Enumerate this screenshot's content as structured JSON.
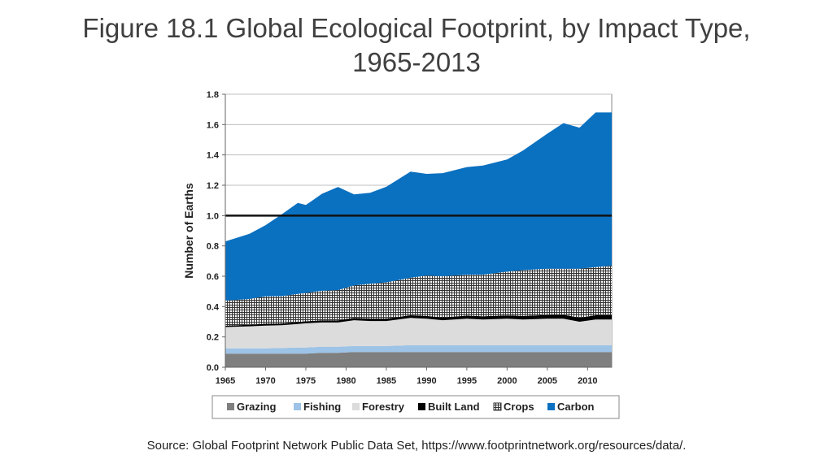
{
  "slide": {
    "title_line1": "Figure 18.1 Global Ecological Footprint, by Impact Type,",
    "title_line2": "1965-2013",
    "source": "Source: Global Footprint Network Public Data Set, https://www.footprintnetwork.org/resources/data/."
  },
  "chart_data": {
    "type": "area",
    "stacked": true,
    "x": [
      1965,
      1968,
      1970,
      1972,
      1974,
      1975,
      1977,
      1979,
      1981,
      1983,
      1985,
      1988,
      1990,
      1992,
      1995,
      1997,
      2000,
      2002,
      2005,
      2007,
      2009,
      2011,
      2013
    ],
    "series": [
      {
        "name": "Grazing",
        "color": "#7f7f7f",
        "pattern": "solid",
        "values": [
          0.09,
          0.09,
          0.09,
          0.09,
          0.09,
          0.09,
          0.095,
          0.095,
          0.1,
          0.1,
          0.1,
          0.1,
          0.1,
          0.1,
          0.1,
          0.1,
          0.1,
          0.1,
          0.1,
          0.1,
          0.1,
          0.1,
          0.1
        ]
      },
      {
        "name": "Fishing",
        "color": "#9dc3e6",
        "pattern": "solid",
        "values": [
          0.035,
          0.035,
          0.035,
          0.037,
          0.04,
          0.04,
          0.04,
          0.04,
          0.04,
          0.04,
          0.04,
          0.045,
          0.045,
          0.045,
          0.045,
          0.045,
          0.045,
          0.045,
          0.045,
          0.045,
          0.045,
          0.045,
          0.045
        ]
      },
      {
        "name": "Forestry",
        "color": "#dcdcdc",
        "pattern": "solid",
        "values": [
          0.14,
          0.145,
          0.15,
          0.15,
          0.155,
          0.16,
          0.16,
          0.16,
          0.17,
          0.165,
          0.165,
          0.18,
          0.175,
          0.165,
          0.175,
          0.17,
          0.175,
          0.17,
          0.175,
          0.175,
          0.155,
          0.17,
          0.17
        ]
      },
      {
        "name": "Built Land",
        "color": "#000000",
        "pattern": "solid",
        "values": [
          0.01,
          0.01,
          0.012,
          0.012,
          0.013,
          0.013,
          0.014,
          0.014,
          0.015,
          0.016,
          0.016,
          0.018,
          0.018,
          0.019,
          0.02,
          0.021,
          0.022,
          0.023,
          0.025,
          0.026,
          0.027,
          0.028,
          0.03
        ]
      },
      {
        "name": "Crops",
        "color": "#ffffff",
        "pattern": "grid",
        "values": [
          0.165,
          0.17,
          0.18,
          0.18,
          0.185,
          0.187,
          0.195,
          0.2,
          0.215,
          0.229,
          0.239,
          0.247,
          0.267,
          0.271,
          0.27,
          0.274,
          0.288,
          0.302,
          0.305,
          0.304,
          0.323,
          0.317,
          0.325
        ]
      },
      {
        "name": "Carbon",
        "color": "#0a70c0",
        "pattern": "solid",
        "values": [
          0.39,
          0.43,
          0.47,
          0.54,
          0.6,
          0.58,
          0.64,
          0.68,
          0.6,
          0.6,
          0.63,
          0.7,
          0.67,
          0.68,
          0.71,
          0.72,
          0.74,
          0.79,
          0.89,
          0.96,
          0.93,
          1.02,
          1.01
        ]
      }
    ],
    "reference_line": 1.0,
    "ylabel": "Number of Earths",
    "ylim": [
      0,
      1.8
    ],
    "yticks": [
      0.0,
      0.2,
      0.4,
      0.6,
      0.8,
      1.0,
      1.2,
      1.4,
      1.6,
      1.8
    ],
    "ytick_labels": [
      "0.0",
      "0.2",
      "0.4",
      "0.6",
      "0.8",
      "1.0",
      "1.2",
      "1.4",
      "1.6",
      "1.8"
    ],
    "xlim": [
      1965,
      2013
    ],
    "xticks": [
      1965,
      1970,
      1975,
      1980,
      1985,
      1990,
      1995,
      2000,
      2005,
      2010
    ],
    "xtick_labels": [
      "1965",
      "1970",
      "1975",
      "1980",
      "1985",
      "1990",
      "1995",
      "2000",
      "2005",
      "2010"
    ],
    "grid": true,
    "legend_position": "bottom"
  }
}
